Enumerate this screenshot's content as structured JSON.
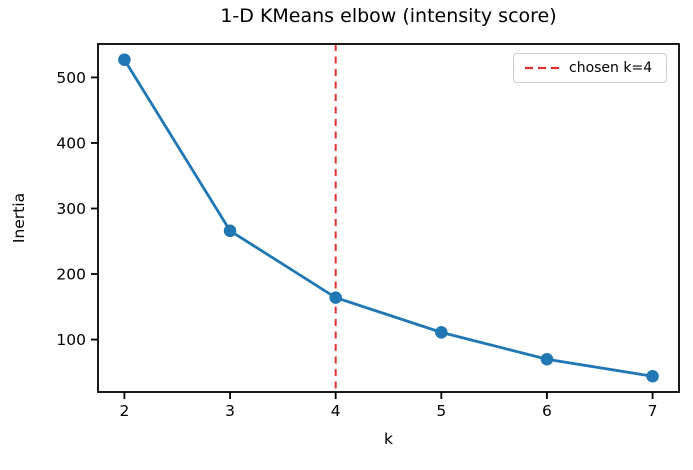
{
  "title": "1-D KMeans elbow (intensity score)",
  "chart_data": {
    "type": "line",
    "title": "1-D KMeans elbow (intensity score)",
    "xlabel": "k",
    "ylabel": "Inertia",
    "x": [
      2,
      3,
      4,
      5,
      6,
      7
    ],
    "series": [
      {
        "name": "inertia",
        "values": [
          527,
          266,
          164,
          111,
          70,
          44
        ],
        "color": "#1f77b4",
        "marker": "circle",
        "linewidth": 2.8,
        "markersize": 12.5
      }
    ],
    "xticks": [
      2,
      3,
      4,
      5,
      6,
      7
    ],
    "yticks": [
      100,
      200,
      300,
      400,
      500
    ],
    "xlim": [
      1.75,
      7.25
    ],
    "ylim": [
      20,
      551
    ],
    "grid": false,
    "vline": {
      "x": 4,
      "color": "#e03131",
      "style": "dashed",
      "label": "chosen k=4"
    },
    "legend": {
      "position": "upper right",
      "entries": [
        {
          "label": "chosen k=4",
          "color": "#e03131",
          "style": "dashed"
        }
      ]
    }
  },
  "colors": {
    "line": "#1f77b4",
    "vline": "#e03131",
    "spine": "#000000",
    "legend_border": "#cccccc",
    "background": "#ffffff"
  }
}
